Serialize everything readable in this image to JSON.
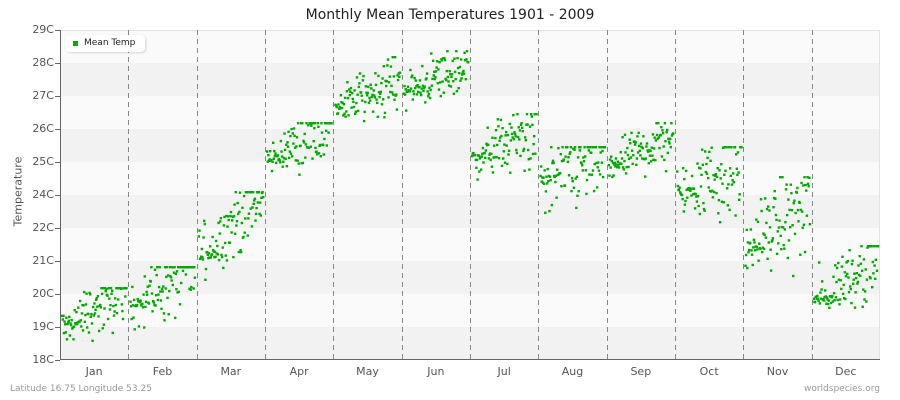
{
  "chart_data": {
    "type": "scatter",
    "title": "Monthly Mean Temperatures 1901 - 2009",
    "xlabel": "",
    "ylabel": "Temperature",
    "y_tick_labels": [
      "18C",
      "19C",
      "20C",
      "21C",
      "22C",
      "24C",
      "25C",
      "26C",
      "27C",
      "28C",
      "29C"
    ],
    "ylim": [
      18,
      29
    ],
    "categories": [
      "Jan",
      "Feb",
      "Mar",
      "Apr",
      "May",
      "Jun",
      "Jul",
      "Aug",
      "Sep",
      "Oct",
      "Nov",
      "Dec"
    ],
    "grid": {
      "horizontal_bands": true,
      "vertical_dashed_month_dividers": true
    },
    "legend_position": "top-left",
    "series": [
      {
        "name": "Mean Temp",
        "color": "#00aa00",
        "points_per_month": 109,
        "monthly_summary": [
          {
            "month": "Jan",
            "start": 19.2,
            "end": 20.2,
            "min": 18.0,
            "max": 20.4,
            "mean": 19.4
          },
          {
            "month": "Feb",
            "start": 19.9,
            "end": 21.1,
            "min": 18.2,
            "max": 21.1,
            "mean": 20.1
          },
          {
            "month": "Mar",
            "start": 21.5,
            "end": 23.5,
            "min": 20.6,
            "max": 23.6,
            "mean": 21.9
          },
          {
            "month": "Apr",
            "start": 24.7,
            "end": 25.9,
            "min": 23.6,
            "max": 25.9,
            "mean": 24.8
          },
          {
            "month": "May",
            "start": 26.5,
            "end": 27.3,
            "min": 25.4,
            "max": 28.1,
            "mean": 26.5
          },
          {
            "month": "Jun",
            "start": 27.0,
            "end": 27.8,
            "min": 25.9,
            "max": 28.3,
            "mean": 27.0
          },
          {
            "month": "Jul",
            "start": 24.8,
            "end": 25.6,
            "min": 23.4,
            "max": 26.2,
            "mean": 24.8
          },
          {
            "month": "Aug",
            "start": 24.0,
            "end": 24.8,
            "min": 21.8,
            "max": 25.1,
            "mean": 23.9
          },
          {
            "month": "Sep",
            "start": 24.5,
            "end": 25.5,
            "min": 23.5,
            "max": 25.9,
            "mean": 24.6
          },
          {
            "month": "Oct",
            "start": 23.6,
            "end": 24.5,
            "min": 21.5,
            "max": 25.1,
            "mean": 23.5
          },
          {
            "month": "Nov",
            "start": 21.8,
            "end": 23.2,
            "min": 20.0,
            "max": 24.1,
            "mean": 21.8
          },
          {
            "month": "Dec",
            "start": 20.0,
            "end": 21.5,
            "min": 18.8,
            "max": 21.8,
            "mean": 20.1
          }
        ]
      }
    ]
  },
  "legend": {
    "label": "Mean Temp",
    "color": "#00aa00"
  },
  "footer": {
    "left": "Latitude 16.75 Longitude 53.25",
    "right": "worldspecies.org"
  },
  "colors": {
    "band_light": "#fafafa",
    "band_dark": "#f2f2f2",
    "axis": "#666666",
    "divider": "#888888",
    "point": "#00aa00"
  }
}
